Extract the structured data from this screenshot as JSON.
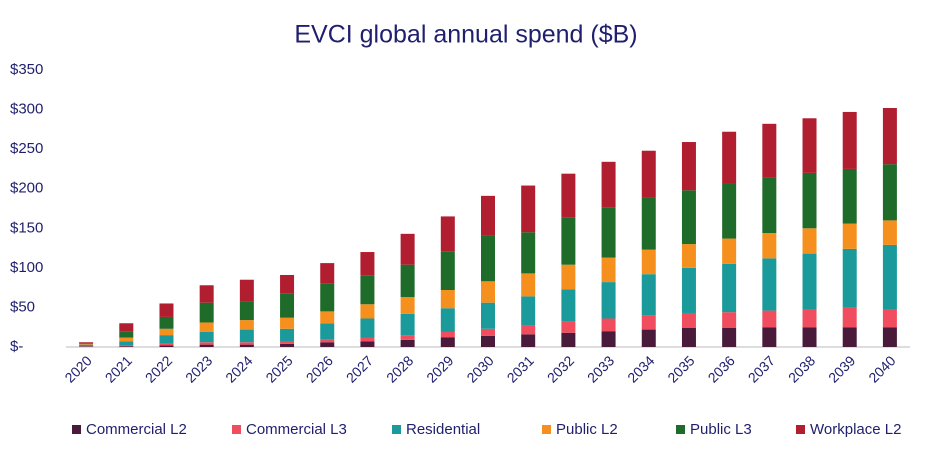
{
  "chart_data": {
    "type": "stacked_bar",
    "title": "EVCI global annual spend ($B)",
    "categories": [
      "2020",
      "2021",
      "2022",
      "2023",
      "2024",
      "2025",
      "2026",
      "2027",
      "2028",
      "2029",
      "2030",
      "2031",
      "2032",
      "2033",
      "2034",
      "2035",
      "2036",
      "2037",
      "2038",
      "2039",
      "2040"
    ],
    "series": [
      {
        "name": "Commercial L2",
        "color": "#4a1a3a",
        "values": [
          0.5,
          1,
          2,
          3,
          3,
          4,
          6,
          7,
          9,
          12,
          14,
          16,
          18,
          20,
          22,
          24,
          24,
          25,
          25,
          25,
          25
        ]
      },
      {
        "name": "Commercial L3",
        "color": "#f04e5e",
        "values": [
          0.5,
          1,
          2,
          3,
          3,
          3,
          4,
          5,
          6,
          7,
          9,
          11,
          14,
          16,
          18,
          19,
          20,
          21,
          23,
          25,
          23
        ]
      },
      {
        "name": "Residential",
        "color": "#1a9a9a",
        "values": [
          2,
          5,
          11,
          13,
          16,
          16,
          20,
          24,
          27,
          30,
          33,
          37,
          41,
          46,
          52,
          57,
          61,
          66,
          70,
          74,
          81
        ]
      },
      {
        "name": "Public L2",
        "color": "#f5901e",
        "values": [
          1,
          5,
          8,
          12,
          12,
          14,
          15,
          18,
          21,
          23,
          27,
          29,
          31,
          31,
          31,
          30,
          32,
          32,
          32,
          32,
          31
        ]
      },
      {
        "name": "Public L3",
        "color": "#1f6b2a",
        "values": [
          1,
          8,
          15,
          25,
          23,
          31,
          35,
          36,
          41,
          49,
          58,
          52,
          60,
          63,
          66,
          68,
          69,
          70,
          70,
          69,
          71
        ]
      },
      {
        "name": "Workplace L2",
        "color": "#b01e30",
        "values": [
          1,
          10,
          17,
          22,
          28,
          23,
          26,
          30,
          39,
          44,
          50,
          59,
          55,
          58,
          59,
          61,
          66,
          68,
          69,
          72,
          71
        ]
      }
    ],
    "ylim": [
      0,
      350
    ],
    "yticks": [
      {
        "value": 0,
        "label": "$-"
      },
      {
        "value": 50,
        "label": "$50"
      },
      {
        "value": 100,
        "label": "$100"
      },
      {
        "value": 150,
        "label": "$150"
      },
      {
        "value": 200,
        "label": "$200"
      },
      {
        "value": 250,
        "label": "$250"
      },
      {
        "value": 300,
        "label": "$300"
      },
      {
        "value": 350,
        "label": "$350"
      }
    ],
    "legend": "bottom"
  }
}
